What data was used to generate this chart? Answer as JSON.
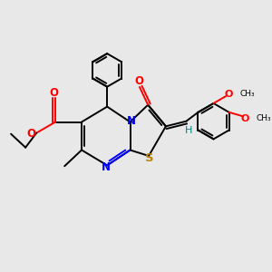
{
  "bg_color": "#e8e8e8",
  "bond_color": "#000000",
  "nitrogen_color": "#0000ff",
  "oxygen_color": "#ff0000",
  "sulfur_color": "#b8860b",
  "teal_color": "#008080",
  "figsize": [
    3.0,
    3.0
  ],
  "dpi": 100,
  "xlim": [
    0,
    10
  ],
  "ylim": [
    0,
    10
  ],
  "lw": 1.4
}
